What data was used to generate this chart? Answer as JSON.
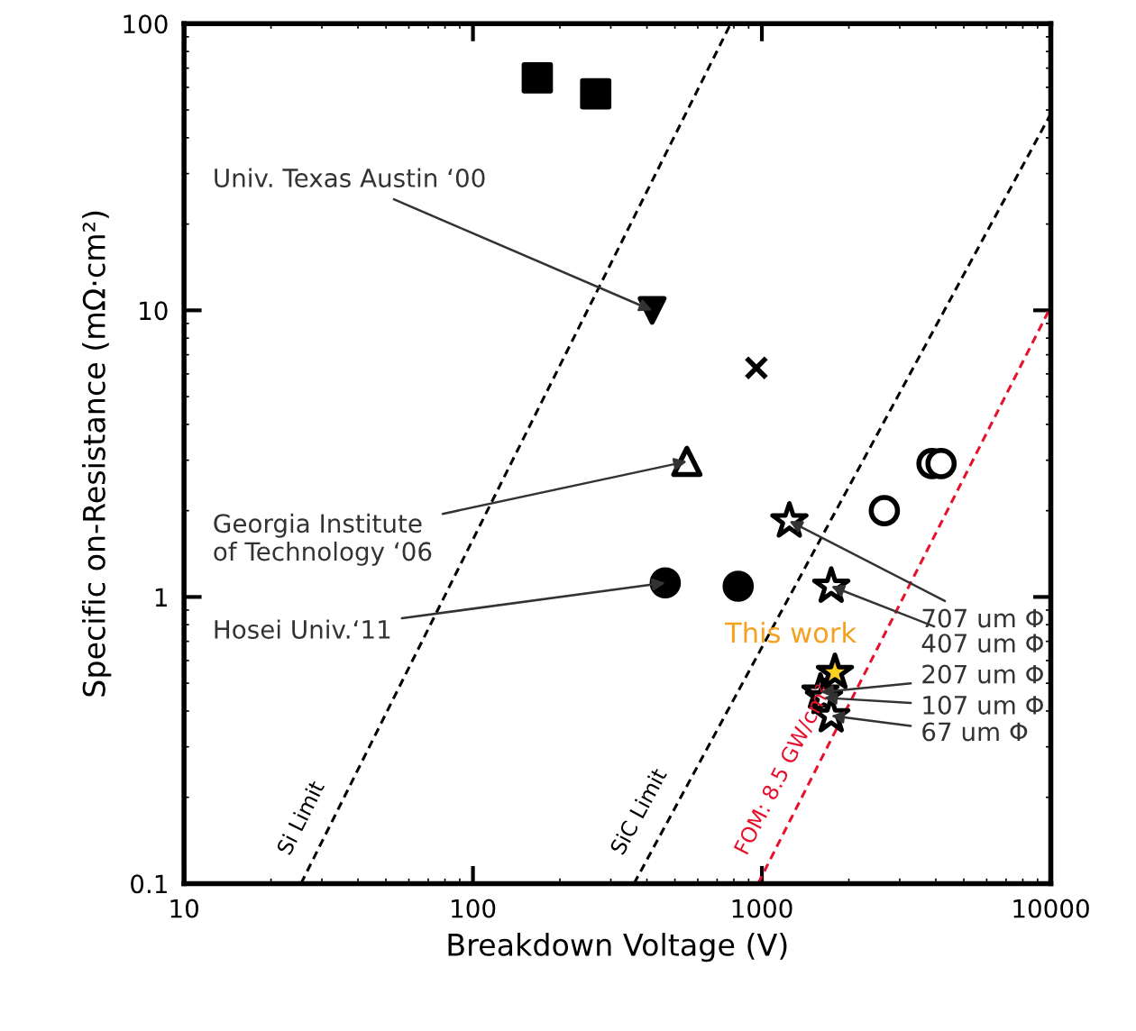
{
  "chart_data": {
    "type": "scatter",
    "xlabel": "Breakdown Voltage (V)",
    "ylabel": "Specific on-Resistance (mΩ·cm²)",
    "log": "xy",
    "xlim": [
      10,
      10000
    ],
    "ylim": [
      0.1,
      100
    ],
    "xticks": [
      10,
      100,
      1000,
      10000
    ],
    "yticks": [
      0.1,
      1,
      10,
      100
    ],
    "grid": false,
    "legend": false,
    "series": [
      {
        "marker": "square",
        "color": "#000000",
        "x": [
          167,
          266
        ],
        "values": [
          64.7,
          56.9
        ]
      },
      {
        "marker": "triangle_down",
        "color": "#000000",
        "x": [
          417
        ],
        "values": [
          10
        ]
      },
      {
        "marker": "cross",
        "color": "#000000",
        "x": [
          957
        ],
        "values": [
          6.3
        ]
      },
      {
        "marker": "triangle",
        "color": "#ffffff",
        "x": [
          550
        ],
        "values": [
          2.97
        ]
      },
      {
        "marker": "circle",
        "color": "#000000",
        "x": [
          463,
          828
        ],
        "values": [
          1.12,
          1.09
        ]
      },
      {
        "marker": "circle",
        "color": "#ffffff",
        "x": [
          2654,
          3880,
          4170
        ],
        "values": [
          2.0,
          2.92,
          2.92
        ]
      },
      {
        "marker": "star",
        "color": "#ffffff",
        "x": [
          1245,
          1738,
          1595,
          1640,
          1738
        ],
        "values": [
          1.84,
          1.09,
          0.465,
          0.445,
          0.385
        ]
      },
      {
        "marker": "star",
        "color": "#ffd21f",
        "x": [
          1790
        ],
        "values": [
          0.545
        ]
      },
      {
        "type": "line",
        "name": "Si Limit",
        "color": "#000000",
        "line_style": "dashed",
        "x": [
          25.4,
          780
        ],
        "values": [
          0.1,
          100
        ]
      },
      {
        "type": "line",
        "name": "SiC Limit",
        "color": "#000000",
        "line_style": "dashed",
        "x": [
          361,
          10000
        ],
        "values": [
          0.1,
          48.5
        ]
      },
      {
        "type": "line",
        "name": "FOM: 8.5 GW/cm²",
        "color": "#e8112d",
        "line_style": "dashed",
        "x": [
          970,
          10000
        ],
        "values": [
          0.1,
          10.3
        ]
      }
    ],
    "annotations": [
      {
        "text": "Univ. Texas Austin ‘00",
        "x": 417,
        "y": 10
      },
      {
        "text": "Georgia Institute\nof Technology ‘06",
        "x": 550,
        "y": 2.97
      },
      {
        "text": "Hosei Univ.‘11",
        "x": 463,
        "y": 1.12
      },
      {
        "text": "This work",
        "x": 1790,
        "y": 0.545
      },
      {
        "text": "707 um Φ",
        "x": 1245,
        "y": 1.84
      },
      {
        "text": "407 um Φ",
        "x": 1738,
        "y": 1.09
      },
      {
        "text": "207 um Φ",
        "x": 1595,
        "y": 0.465
      },
      {
        "text": "107 um Φ",
        "x": 1640,
        "y": 0.445
      },
      {
        "text": "67 um Φ",
        "x": 1738,
        "y": 0.385
      }
    ]
  }
}
